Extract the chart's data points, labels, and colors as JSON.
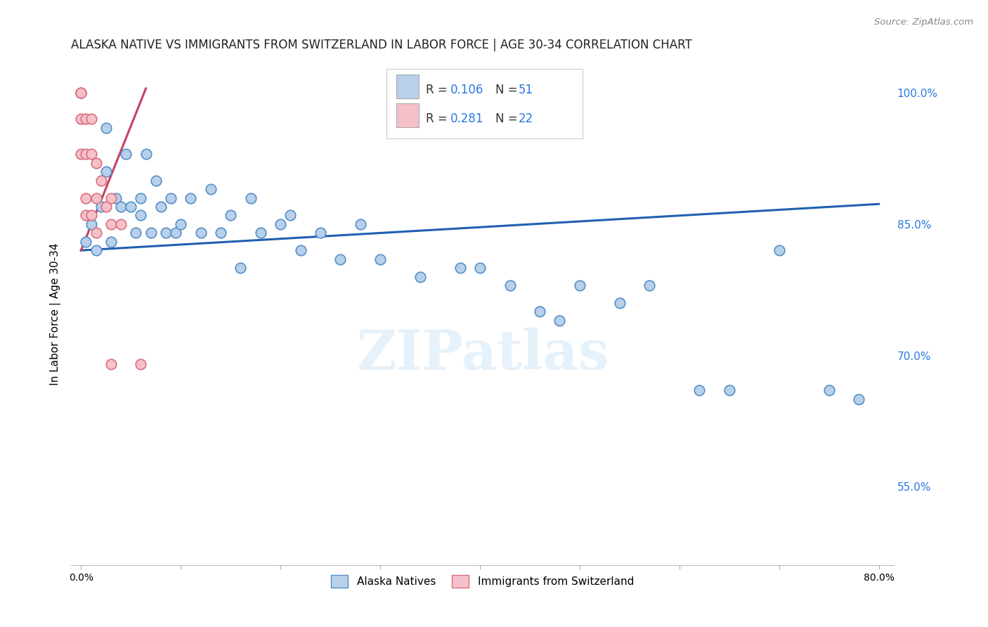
{
  "title": "ALASKA NATIVE VS IMMIGRANTS FROM SWITZERLAND IN LABOR FORCE | AGE 30-34 CORRELATION CHART",
  "source": "Source: ZipAtlas.com",
  "ylabel": "In Labor Force | Age 30-34",
  "xlim": [
    -0.01,
    0.815
  ],
  "ylim": [
    0.46,
    1.035
  ],
  "x_ticks": [
    0.0,
    0.1,
    0.2,
    0.3,
    0.4,
    0.5,
    0.6,
    0.7,
    0.8
  ],
  "x_tick_labels": [
    "0.0%",
    "",
    "",
    "",
    "",
    "",
    "",
    "",
    "80.0%"
  ],
  "y_ticks_right": [
    0.55,
    0.7,
    0.85,
    1.0
  ],
  "y_tick_labels_right": [
    "55.0%",
    "70.0%",
    "85.0%",
    "100.0%"
  ],
  "watermark": "ZIPatlas",
  "alaska_natives_x": [
    0.005,
    0.01,
    0.015,
    0.02,
    0.025,
    0.025,
    0.03,
    0.035,
    0.04,
    0.045,
    0.05,
    0.055,
    0.06,
    0.06,
    0.065,
    0.07,
    0.075,
    0.08,
    0.085,
    0.09,
    0.095,
    0.1,
    0.11,
    0.12,
    0.13,
    0.14,
    0.15,
    0.16,
    0.17,
    0.18,
    0.2,
    0.21,
    0.22,
    0.24,
    0.26,
    0.28,
    0.3,
    0.34,
    0.38,
    0.4,
    0.43,
    0.46,
    0.48,
    0.5,
    0.54,
    0.57,
    0.62,
    0.65,
    0.7,
    0.75,
    0.78
  ],
  "alaska_natives_y": [
    0.83,
    0.85,
    0.82,
    0.87,
    0.91,
    0.96,
    0.83,
    0.88,
    0.87,
    0.93,
    0.87,
    0.84,
    0.88,
    0.86,
    0.93,
    0.84,
    0.9,
    0.87,
    0.84,
    0.88,
    0.84,
    0.85,
    0.88,
    0.84,
    0.89,
    0.84,
    0.86,
    0.8,
    0.88,
    0.84,
    0.85,
    0.86,
    0.82,
    0.84,
    0.81,
    0.85,
    0.81,
    0.79,
    0.8,
    0.8,
    0.78,
    0.75,
    0.74,
    0.78,
    0.76,
    0.78,
    0.66,
    0.66,
    0.82,
    0.66,
    0.65
  ],
  "switzerland_x": [
    0.0,
    0.0,
    0.0,
    0.0,
    0.0,
    0.005,
    0.005,
    0.005,
    0.01,
    0.01,
    0.015,
    0.015,
    0.02,
    0.025,
    0.03,
    0.03,
    0.04,
    0.06,
    0.005,
    0.01,
    0.015,
    0.03
  ],
  "switzerland_y": [
    1.0,
    1.0,
    1.0,
    0.97,
    0.93,
    0.97,
    0.93,
    0.88,
    0.97,
    0.93,
    0.92,
    0.88,
    0.9,
    0.87,
    0.88,
    0.85,
    0.85,
    0.69,
    0.86,
    0.86,
    0.84,
    0.69
  ],
  "blue_line_x": [
    0.0,
    0.8
  ],
  "blue_line_y": [
    0.82,
    0.873
  ],
  "pink_line_x": [
    0.0,
    0.065
  ],
  "pink_line_y": [
    0.82,
    1.005
  ],
  "grid_color": "#d8d8d8",
  "dot_color_blue": "#b8d0ea",
  "dot_color_pink": "#f5c0ca",
  "dot_edge_blue": "#5590c8",
  "dot_edge_pink": "#d87080",
  "trend_blue": "#2060b0",
  "trend_pink": "#c84060",
  "legend_blue_color": "#b8d0ea",
  "legend_pink_color": "#f5c0ca",
  "legend_R1": "0.106",
  "legend_N1": "51",
  "legend_R2": "0.281",
  "legend_N2": "22",
  "label_alaska": "Alaska Natives",
  "label_swiss": "Immigrants from Switzerland"
}
